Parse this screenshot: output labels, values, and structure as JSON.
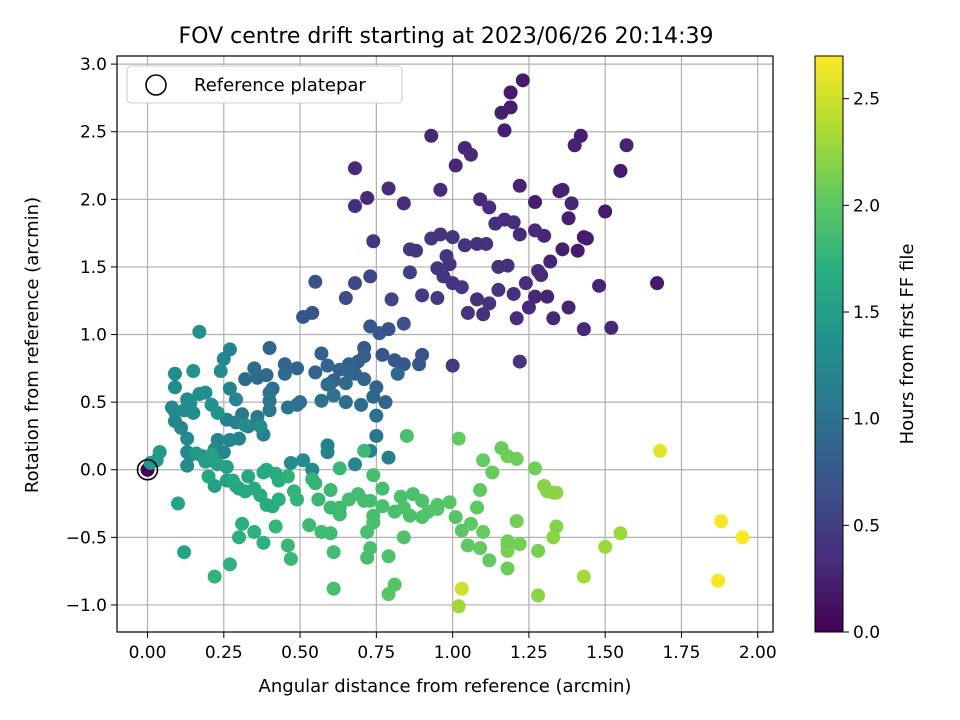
{
  "chart_data": {
    "type": "scatter",
    "title": "FOV centre drift starting at 2023/06/26 20:14:39",
    "xlabel": "Angular distance from reference (arcmin)",
    "ylabel": "Rotation from reference (arcmin)",
    "xlim": [
      -0.1,
      2.05
    ],
    "ylim": [
      -1.2,
      3.06
    ],
    "x_ticks": [
      "0.00",
      "0.25",
      "0.50",
      "0.75",
      "1.00",
      "1.25",
      "1.50",
      "1.75",
      "2.00"
    ],
    "y_ticks": [
      "−1.0",
      "−0.5",
      "0.0",
      "0.5",
      "1.0",
      "1.5",
      "2.0",
      "2.5",
      "3.0"
    ],
    "grid": true,
    "legend": {
      "position": "top-left",
      "entries": [
        "Reference platepar"
      ]
    },
    "reference_point": {
      "x": 0.0,
      "y": 0.0
    },
    "colorbar": {
      "label": "Hours from first FF file",
      "range": [
        0.0,
        2.7
      ],
      "ticks": [
        "0.0",
        "0.5",
        "1.0",
        "1.5",
        "2.0",
        "2.5"
      ],
      "colormap": "viridis"
    },
    "points": [
      [
        0.0,
        0.0,
        0.02
      ],
      [
        0.68,
        2.23,
        0.33
      ],
      [
        0.72,
        2.01,
        0.32
      ],
      [
        0.79,
        2.08,
        0.32
      ],
      [
        0.84,
        1.97,
        0.33
      ],
      [
        0.68,
        1.95,
        0.36
      ],
      [
        0.74,
        1.69,
        0.44
      ],
      [
        0.86,
        1.63,
        0.45
      ],
      [
        0.88,
        1.62,
        0.42
      ],
      [
        0.93,
        2.47,
        0.3
      ],
      [
        0.96,
        2.07,
        0.33
      ],
      [
        1.01,
        2.25,
        0.3
      ],
      [
        1.04,
        2.38,
        0.3
      ],
      [
        1.06,
        2.33,
        0.32
      ],
      [
        1.09,
        2.0,
        0.31
      ],
      [
        1.12,
        1.94,
        0.34
      ],
      [
        1.16,
        2.64,
        0.22
      ],
      [
        1.19,
        2.79,
        0.2
      ],
      [
        1.23,
        2.88,
        0.2
      ],
      [
        1.19,
        2.68,
        0.22
      ],
      [
        1.17,
        2.51,
        0.24
      ],
      [
        1.22,
        2.1,
        0.26
      ],
      [
        1.27,
        1.98,
        0.22
      ],
      [
        1.35,
        2.06,
        0.24
      ],
      [
        1.36,
        2.07,
        0.26
      ],
      [
        1.39,
        1.97,
        0.3
      ],
      [
        1.38,
        1.86,
        0.24
      ],
      [
        1.42,
        2.47,
        0.24
      ],
      [
        1.4,
        2.4,
        0.26
      ],
      [
        1.57,
        2.4,
        0.28
      ],
      [
        1.55,
        2.21,
        0.2
      ],
      [
        1.5,
        1.91,
        0.2
      ],
      [
        1.43,
        1.72,
        0.2
      ],
      [
        1.41,
        1.62,
        0.2
      ],
      [
        1.44,
        1.71,
        0.22
      ],
      [
        1.36,
        1.63,
        0.24
      ],
      [
        1.32,
        1.54,
        0.28
      ],
      [
        1.3,
        1.73,
        0.3
      ],
      [
        1.27,
        1.77,
        0.32
      ],
      [
        1.22,
        1.74,
        0.33
      ],
      [
        1.2,
        1.83,
        0.35
      ],
      [
        1.17,
        1.85,
        0.34
      ],
      [
        1.14,
        1.82,
        0.36
      ],
      [
        1.11,
        1.67,
        0.4
      ],
      [
        1.08,
        1.67,
        0.38
      ],
      [
        1.04,
        1.66,
        0.4
      ],
      [
        1.0,
        1.72,
        0.42
      ],
      [
        0.96,
        1.74,
        0.4
      ],
      [
        0.93,
        1.71,
        0.42
      ],
      [
        1.18,
        1.51,
        0.36
      ],
      [
        1.15,
        1.5,
        0.38
      ],
      [
        1.28,
        1.47,
        0.36
      ],
      [
        1.29,
        1.44,
        0.32
      ],
      [
        1.24,
        1.38,
        0.34
      ],
      [
        1.2,
        1.3,
        0.36
      ],
      [
        1.15,
        1.33,
        0.4
      ],
      [
        1.12,
        1.23,
        0.4
      ],
      [
        1.08,
        1.26,
        0.38
      ],
      [
        1.05,
        1.16,
        0.4
      ],
      [
        1.03,
        1.35,
        0.42
      ],
      [
        1.0,
        1.38,
        0.4
      ],
      [
        0.97,
        1.43,
        0.42
      ],
      [
        0.95,
        1.49,
        0.44
      ],
      [
        0.98,
        1.58,
        0.42
      ],
      [
        0.99,
        1.52,
        0.4
      ],
      [
        1.25,
        1.2,
        0.34
      ],
      [
        1.27,
        1.28,
        0.3
      ],
      [
        1.31,
        1.28,
        0.28
      ],
      [
        1.33,
        1.12,
        0.3
      ],
      [
        1.38,
        1.2,
        0.28
      ],
      [
        1.43,
        1.04,
        0.3
      ],
      [
        1.52,
        1.05,
        0.3
      ],
      [
        1.48,
        1.36,
        0.28
      ],
      [
        1.67,
        1.38,
        0.2
      ],
      [
        1.21,
        1.12,
        0.34
      ],
      [
        1.1,
        1.15,
        0.38
      ],
      [
        1.22,
        0.8,
        0.4
      ],
      [
        1.0,
        0.77,
        0.46
      ],
      [
        0.95,
        1.27,
        0.46
      ],
      [
        0.9,
        1.29,
        0.46
      ],
      [
        0.86,
        1.46,
        0.5
      ],
      [
        0.8,
        1.26,
        0.56
      ],
      [
        0.73,
        1.43,
        0.58
      ],
      [
        0.68,
        1.38,
        0.6
      ],
      [
        0.65,
        1.27,
        0.62
      ],
      [
        0.55,
        1.39,
        0.66
      ],
      [
        0.54,
        1.16,
        0.7
      ],
      [
        0.51,
        1.13,
        0.72
      ],
      [
        0.73,
        1.06,
        0.74
      ],
      [
        0.76,
        1.01,
        0.76
      ],
      [
        0.79,
        1.04,
        0.7
      ],
      [
        0.84,
        1.08,
        0.66
      ],
      [
        0.81,
        0.81,
        0.74
      ],
      [
        0.77,
        0.85,
        0.74
      ],
      [
        0.9,
        0.85,
        0.7
      ],
      [
        0.89,
        0.78,
        0.72
      ],
      [
        0.84,
        0.78,
        0.74
      ],
      [
        0.71,
        0.9,
        0.78
      ],
      [
        0.71,
        0.84,
        0.8
      ],
      [
        0.69,
        0.8,
        0.8
      ],
      [
        0.66,
        0.78,
        0.82
      ],
      [
        0.63,
        0.74,
        0.84
      ],
      [
        0.61,
        0.66,
        0.84
      ],
      [
        0.57,
        0.86,
        0.82
      ],
      [
        0.55,
        0.72,
        0.84
      ],
      [
        0.59,
        0.77,
        0.86
      ],
      [
        0.6,
        0.64,
        0.86
      ],
      [
        0.49,
        0.75,
        0.88
      ],
      [
        0.45,
        0.78,
        0.86
      ],
      [
        0.4,
        0.9,
        0.9
      ],
      [
        0.39,
        0.7,
        0.92
      ],
      [
        0.36,
        0.68,
        0.92
      ],
      [
        0.32,
        0.67,
        0.94
      ],
      [
        0.35,
        0.75,
        0.94
      ],
      [
        0.41,
        0.6,
        0.96
      ],
      [
        0.45,
        0.71,
        0.94
      ],
      [
        0.5,
        0.5,
        0.98
      ],
      [
        0.49,
        0.48,
        1.0
      ],
      [
        0.57,
        0.51,
        1.0
      ],
      [
        0.59,
        0.63,
        0.96
      ],
      [
        0.65,
        0.64,
        0.94
      ],
      [
        0.66,
        0.73,
        0.9
      ],
      [
        0.68,
        0.71,
        0.88
      ],
      [
        0.71,
        0.67,
        0.86
      ],
      [
        0.74,
        0.54,
        0.9
      ],
      [
        0.75,
        0.61,
        0.88
      ],
      [
        0.78,
        0.5,
        0.88
      ],
      [
        0.82,
        0.71,
        0.9
      ],
      [
        0.65,
        0.5,
        0.96
      ],
      [
        0.7,
        0.48,
        0.98
      ],
      [
        0.61,
        0.55,
        1.0
      ],
      [
        0.4,
        0.57,
        1.0
      ],
      [
        0.4,
        0.51,
        1.04
      ],
      [
        0.46,
        0.46,
        1.06
      ],
      [
        0.4,
        0.44,
        1.06
      ],
      [
        0.36,
        0.39,
        1.1
      ],
      [
        0.31,
        0.41,
        1.1
      ],
      [
        0.36,
        0.34,
        1.12
      ],
      [
        0.38,
        0.26,
        1.16
      ],
      [
        0.75,
        0.4,
        0.98
      ],
      [
        0.75,
        0.25,
        1.06
      ],
      [
        0.79,
        0.09,
        1.14
      ],
      [
        0.73,
        0.14,
        1.2
      ],
      [
        0.59,
        0.18,
        1.16
      ],
      [
        0.59,
        0.13,
        1.2
      ],
      [
        0.68,
        0.04,
        1.24
      ],
      [
        0.54,
        0.0,
        1.26
      ],
      [
        0.47,
        0.05,
        1.3
      ],
      [
        0.51,
        0.07,
        1.28
      ],
      [
        0.33,
        0.32,
        1.12
      ],
      [
        0.29,
        0.35,
        1.16
      ],
      [
        0.26,
        0.37,
        1.18
      ],
      [
        0.3,
        0.23,
        1.2
      ],
      [
        0.27,
        0.22,
        1.22
      ],
      [
        0.23,
        0.22,
        1.22
      ],
      [
        0.22,
        0.15,
        1.26
      ],
      [
        0.25,
        0.13,
        1.26
      ],
      [
        0.22,
        0.06,
        1.3
      ],
      [
        0.18,
        0.1,
        1.32
      ],
      [
        0.14,
        0.11,
        1.28
      ],
      [
        0.13,
        0.03,
        1.3
      ],
      [
        0.13,
        0.13,
        1.26
      ],
      [
        0.13,
        0.23,
        1.26
      ],
      [
        0.11,
        0.31,
        1.24
      ],
      [
        0.09,
        0.36,
        1.22
      ],
      [
        0.08,
        0.46,
        1.24
      ],
      [
        0.09,
        0.43,
        1.26
      ],
      [
        0.13,
        0.52,
        1.26
      ],
      [
        0.12,
        0.44,
        1.28
      ],
      [
        0.15,
        0.42,
        1.3
      ],
      [
        0.17,
        0.56,
        1.32
      ],
      [
        0.19,
        0.57,
        1.34
      ],
      [
        0.14,
        0.49,
        1.34
      ],
      [
        0.09,
        0.61,
        1.3
      ],
      [
        0.09,
        0.71,
        1.32
      ],
      [
        0.15,
        0.73,
        1.36
      ],
      [
        0.21,
        0.48,
        1.36
      ],
      [
        0.23,
        0.42,
        1.38
      ],
      [
        0.17,
        1.02,
        1.36
      ],
      [
        0.24,
        0.73,
        1.3
      ],
      [
        0.25,
        0.82,
        1.24
      ],
      [
        0.27,
        0.89,
        1.2
      ],
      [
        0.27,
        0.6,
        1.22
      ],
      [
        0.29,
        0.52,
        1.24
      ],
      [
        0.32,
        0.33,
        1.3
      ],
      [
        0.37,
        0.32,
        1.28
      ],
      [
        0.03,
        0.07,
        1.5
      ],
      [
        0.01,
        0.05,
        1.42
      ],
      [
        0.04,
        0.13,
        1.46
      ],
      [
        0.1,
        -0.25,
        1.56
      ],
      [
        0.12,
        -0.61,
        1.56
      ],
      [
        0.16,
        0.12,
        1.46
      ],
      [
        0.19,
        0.06,
        1.5
      ],
      [
        0.21,
        0.11,
        1.52
      ],
      [
        0.23,
        0.04,
        1.52
      ],
      [
        0.26,
        0.02,
        1.54
      ],
      [
        0.22,
        -0.12,
        1.52
      ],
      [
        0.26,
        -0.08,
        1.54
      ],
      [
        0.29,
        -0.12,
        1.58
      ],
      [
        0.3,
        -0.14,
        1.6
      ],
      [
        0.32,
        -0.16,
        1.62
      ],
      [
        0.35,
        -0.14,
        1.64
      ],
      [
        0.37,
        -0.19,
        1.66
      ],
      [
        0.38,
        -0.02,
        1.62
      ],
      [
        0.39,
        0.0,
        1.64
      ],
      [
        0.42,
        -0.03,
        1.66
      ],
      [
        0.43,
        -0.08,
        1.66
      ],
      [
        0.39,
        -0.26,
        1.68
      ],
      [
        0.41,
        -0.27,
        1.66
      ],
      [
        0.43,
        -0.22,
        1.7
      ],
      [
        0.46,
        -0.05,
        1.74
      ],
      [
        0.48,
        -0.16,
        1.76
      ],
      [
        0.49,
        -0.22,
        1.76
      ],
      [
        0.54,
        -0.07,
        1.76
      ],
      [
        0.55,
        -0.1,
        1.78
      ],
      [
        0.56,
        -0.22,
        1.8
      ],
      [
        0.6,
        -0.15,
        1.82
      ],
      [
        0.6,
        -0.28,
        1.82
      ],
      [
        0.63,
        -0.33,
        1.84
      ],
      [
        0.63,
        -0.28,
        1.84
      ],
      [
        0.63,
        0.01,
        1.8
      ],
      [
        0.66,
        -0.22,
        1.86
      ],
      [
        0.69,
        -0.18,
        1.86
      ],
      [
        0.71,
        -0.23,
        1.86
      ],
      [
        0.73,
        -0.23,
        1.88
      ],
      [
        0.74,
        -0.34,
        1.88
      ],
      [
        0.77,
        -0.27,
        1.9
      ],
      [
        0.81,
        -0.31,
        1.9
      ],
      [
        0.83,
        -0.2,
        1.9
      ],
      [
        0.87,
        -0.18,
        1.92
      ],
      [
        0.9,
        -0.23,
        1.92
      ],
      [
        0.92,
        -0.31,
        1.96
      ],
      [
        0.95,
        -0.26,
        1.96
      ],
      [
        0.99,
        -0.24,
        1.98
      ],
      [
        1.01,
        -0.35,
        1.98
      ],
      [
        1.03,
        -0.45,
        2.0
      ],
      [
        1.06,
        -0.4,
        2.02
      ],
      [
        1.08,
        -0.28,
        2.02
      ],
      [
        1.05,
        -0.56,
        2.02
      ],
      [
        1.09,
        -0.58,
        2.04
      ],
      [
        1.12,
        -0.67,
        2.04
      ],
      [
        1.09,
        -0.15,
        2.02
      ],
      [
        1.1,
        0.07,
        2.04
      ],
      [
        1.13,
        -0.02,
        2.06
      ],
      [
        1.02,
        0.23,
        2.04
      ],
      [
        1.16,
        0.16,
        2.06
      ],
      [
        1.18,
        0.1,
        2.1
      ],
      [
        1.21,
        0.08,
        2.1
      ],
      [
        1.27,
        0.01,
        2.1
      ],
      [
        1.18,
        -0.55,
        2.08
      ],
      [
        1.18,
        -0.73,
        2.08
      ],
      [
        1.21,
        -0.38,
        2.12
      ],
      [
        1.22,
        -0.55,
        2.12
      ],
      [
        1.28,
        -0.6,
        2.14
      ],
      [
        1.3,
        -0.12,
        2.2
      ],
      [
        1.31,
        -0.16,
        2.2
      ],
      [
        1.33,
        -0.17,
        2.22
      ],
      [
        1.34,
        -0.17,
        2.22
      ],
      [
        1.33,
        -0.5,
        2.22
      ],
      [
        1.34,
        -0.42,
        2.2
      ],
      [
        1.43,
        -0.79,
        2.32
      ],
      [
        1.5,
        -0.57,
        2.3
      ],
      [
        1.55,
        -0.47,
        2.3
      ],
      [
        1.28,
        -0.93,
        2.22
      ],
      [
        1.18,
        -0.6,
        2.14
      ],
      [
        1.02,
        -1.01,
        2.3
      ],
      [
        1.03,
        -0.88,
        2.5
      ],
      [
        1.68,
        0.14,
        2.6
      ],
      [
        1.88,
        -0.38,
        2.68
      ],
      [
        1.87,
        -0.82,
        2.68
      ],
      [
        1.95,
        -0.5,
        2.7
      ],
      [
        0.2,
        -0.05,
        1.6
      ],
      [
        0.28,
        -0.08,
        1.62
      ],
      [
        0.33,
        -0.05,
        1.64
      ],
      [
        0.31,
        -0.4,
        1.7
      ],
      [
        0.3,
        -0.5,
        1.7
      ],
      [
        0.27,
        -0.7,
        1.72
      ],
      [
        0.22,
        -0.79,
        1.74
      ],
      [
        0.35,
        -0.46,
        1.72
      ],
      [
        0.38,
        -0.54,
        1.72
      ],
      [
        0.42,
        -0.42,
        1.76
      ],
      [
        0.46,
        -0.56,
        1.8
      ],
      [
        0.47,
        -0.66,
        1.8
      ],
      [
        0.53,
        -0.41,
        1.82
      ],
      [
        0.57,
        -0.46,
        1.84
      ],
      [
        0.6,
        -0.47,
        1.84
      ],
      [
        0.61,
        -0.61,
        1.86
      ],
      [
        0.61,
        -0.88,
        1.88
      ],
      [
        0.72,
        -0.65,
        1.88
      ],
      [
        0.73,
        -0.58,
        1.9
      ],
      [
        0.79,
        -0.64,
        1.92
      ],
      [
        0.81,
        -0.85,
        1.96
      ],
      [
        0.79,
        -0.92,
        1.98
      ],
      [
        0.84,
        -0.5,
        1.94
      ],
      [
        0.74,
        -0.39,
        1.88
      ],
      [
        0.9,
        -0.35,
        1.94
      ],
      [
        0.72,
        -0.46,
        1.9
      ],
      [
        0.77,
        -0.14,
        1.86
      ],
      [
        0.86,
        -0.34,
        1.9
      ],
      [
        0.84,
        -0.28,
        1.92
      ],
      [
        0.74,
        -0.04,
        1.88
      ],
      [
        1.18,
        -0.53,
        2.1
      ],
      [
        1.1,
        -0.46,
        2.06
      ],
      [
        0.95,
        -0.29,
        1.96
      ],
      [
        0.85,
        0.25,
        1.9
      ],
      [
        0.71,
        0.14,
        1.82
      ]
    ]
  }
}
